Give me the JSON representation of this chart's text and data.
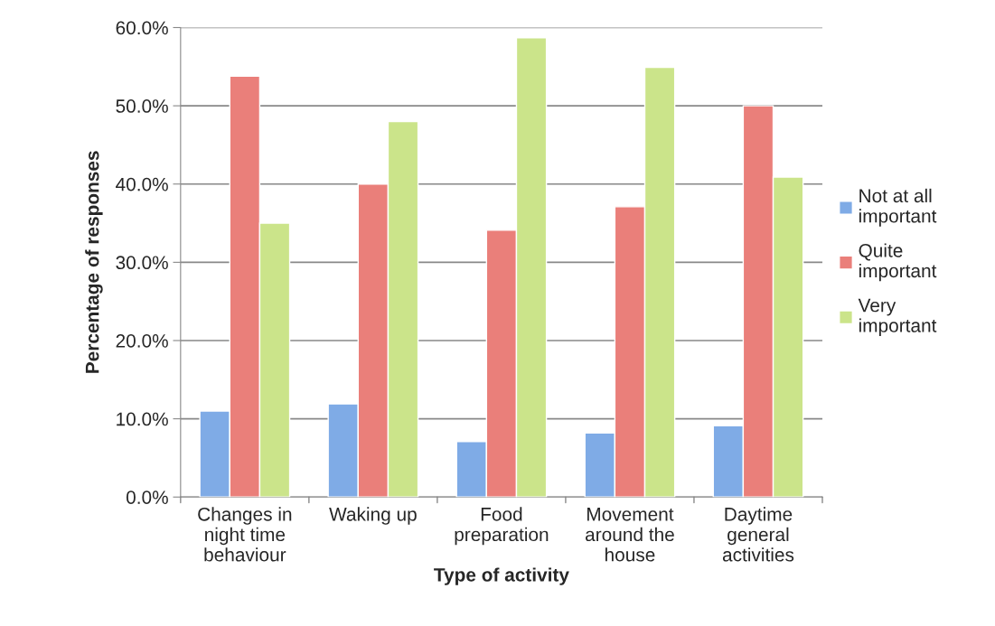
{
  "chart_data": {
    "type": "bar",
    "xlabel": "Type of activity",
    "ylabel": "Percentage of responses",
    "categories": [
      "Changes in\nnight time\nbehaviour",
      "Waking up",
      "Food\npreparation",
      "Movement\naround the\nhouse",
      "Daytime\ngeneral\nactivities"
    ],
    "series": [
      {
        "name": "Not at all\nimportant",
        "color": "#7fabe6",
        "values": [
          11.0,
          11.9,
          7.1,
          8.2,
          9.1
        ]
      },
      {
        "name": "Quite\nimportant",
        "color": "#ea7f7a",
        "values": [
          53.8,
          40.0,
          34.1,
          37.1,
          50.0
        ]
      },
      {
        "name": "Very\nimportant",
        "color": "#cbe48a",
        "values": [
          35.0,
          48.0,
          58.7,
          54.9,
          40.9
        ]
      }
    ],
    "ylim": [
      0,
      60
    ],
    "yticks": [
      {
        "value": 0,
        "label": "0.0%"
      },
      {
        "value": 10,
        "label": "10.0%"
      },
      {
        "value": 20,
        "label": "20.0%"
      },
      {
        "value": 30,
        "label": "30.0%"
      },
      {
        "value": 40,
        "label": "40.0%"
      },
      {
        "value": 50,
        "label": "50.0%"
      },
      {
        "value": 60,
        "label": "60.0%"
      }
    ],
    "grid": "y",
    "legend": "right"
  }
}
